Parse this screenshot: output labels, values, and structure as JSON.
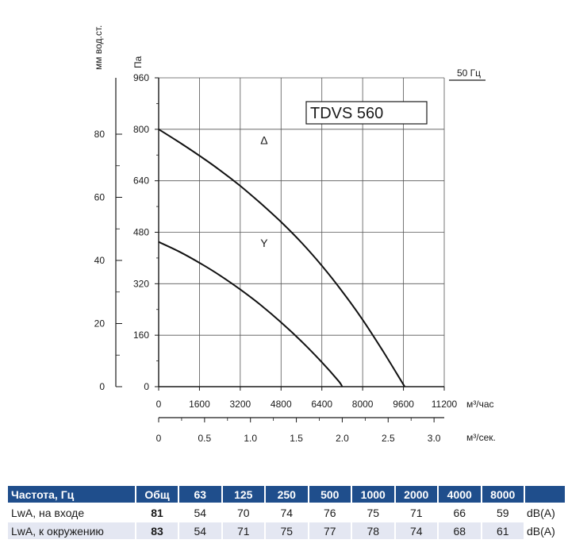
{
  "chart_data": {
    "type": "line",
    "title": "TDVS 560",
    "frequency_label": "50 Гц",
    "y_left_outer_label": "мм вод.ст.",
    "y_left_inner_label": "Па",
    "x_label": "м³/час",
    "x2_label": "м³/сек.",
    "ylim": [
      0,
      960
    ],
    "xlim": [
      0,
      11200
    ],
    "y_ticks": [
      "0",
      "160",
      "320",
      "480",
      "640",
      "800",
      "960"
    ],
    "y_ticks_values": [
      0,
      160,
      320,
      480,
      640,
      800,
      960
    ],
    "y2_ticks": [
      "0",
      "20",
      "40",
      "60",
      "80"
    ],
    "y2_ticks_values": [
      0,
      20,
      40,
      60,
      80
    ],
    "y2_to_y_factor": 9.81,
    "x_ticks": [
      "0",
      "1600",
      "3200",
      "4800",
      "6400",
      "8000",
      "9600",
      "11200"
    ],
    "x_ticks_values": [
      0,
      1600,
      3200,
      4800,
      6400,
      8000,
      9600,
      11200
    ],
    "x2_ticks": [
      "0",
      "0.5",
      "1.0",
      "1.5",
      "2.0",
      "2.5",
      "3.0"
    ],
    "x2_ticks_values": [
      0,
      0.5,
      1.0,
      1.5,
      2.0,
      2.5,
      3.0
    ],
    "x2_to_x_factor": 3600,
    "series": [
      {
        "name": "Δ",
        "points": [
          [
            0,
            800
          ],
          [
            800,
            760
          ],
          [
            1600,
            718
          ],
          [
            2400,
            673
          ],
          [
            3200,
            624
          ],
          [
            4000,
            570
          ],
          [
            4800,
            512
          ],
          [
            5600,
            448
          ],
          [
            6400,
            376
          ],
          [
            7200,
            296
          ],
          [
            8000,
            208
          ],
          [
            8800,
            110
          ],
          [
            9650,
            0
          ]
        ],
        "label_at": [
          2000,
          690
        ]
      },
      {
        "name": "Y",
        "points": [
          [
            0,
            450
          ],
          [
            800,
            420
          ],
          [
            1600,
            385
          ],
          [
            2400,
            346
          ],
          [
            3200,
            302
          ],
          [
            4000,
            254
          ],
          [
            4800,
            200
          ],
          [
            5600,
            141
          ],
          [
            6400,
            76
          ],
          [
            7050,
            18
          ],
          [
            7200,
            0
          ]
        ],
        "label_at": [
          2000,
          370
        ]
      }
    ]
  },
  "noise_table": {
    "header": {
      "label": "Частота, Гц",
      "total": "Общ",
      "bands": [
        "63",
        "125",
        "250",
        "500",
        "1000",
        "2000",
        "4000",
        "8000"
      ]
    },
    "rows": [
      {
        "label": "LwA, на входе",
        "total": "81",
        "values": [
          "54",
          "70",
          "74",
          "76",
          "75",
          "71",
          "66",
          "59"
        ],
        "unit": "dB(A)"
      },
      {
        "label": "LwA, к окружению",
        "total": "83",
        "values": [
          "54",
          "71",
          "75",
          "77",
          "78",
          "74",
          "68",
          "61"
        ],
        "unit": "dB(A)"
      }
    ]
  }
}
